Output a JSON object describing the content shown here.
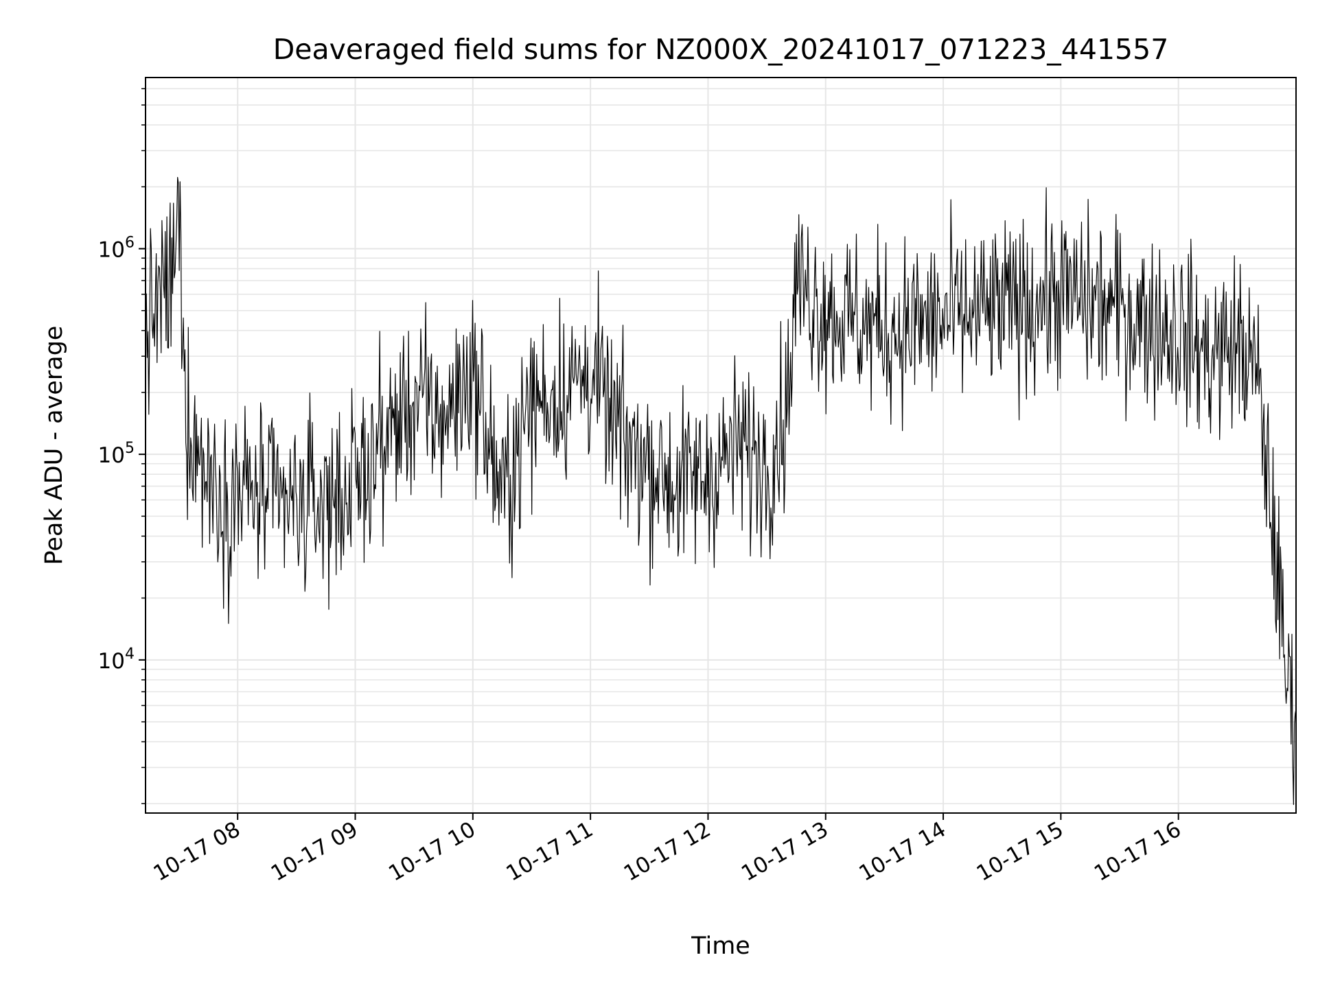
{
  "chart_data": {
    "type": "line",
    "title": "Deaveraged field sums for NZ000X_20241017_071223_441557",
    "xlabel": "Time",
    "ylabel": "Peak ADU - average",
    "yscale": "log",
    "ylim": [
      1800,
      6800000
    ],
    "xlim": [
      "2024-10-17 07:13",
      "2024-10-17 17:00"
    ],
    "grid": true,
    "line_color": "#000000",
    "grid_color": "#e6e6e6",
    "x_ticks": [
      {
        "label": "10-17 08",
        "time": "2024-10-17 08:00"
      },
      {
        "label": "10-17 09",
        "time": "2024-10-17 09:00"
      },
      {
        "label": "10-17 10",
        "time": "2024-10-17 10:00"
      },
      {
        "label": "10-17 11",
        "time": "2024-10-17 11:00"
      },
      {
        "label": "10-17 12",
        "time": "2024-10-17 12:00"
      },
      {
        "label": "10-17 13",
        "time": "2024-10-17 13:00"
      },
      {
        "label": "10-17 14",
        "time": "2024-10-17 14:00"
      },
      {
        "label": "10-17 15",
        "time": "2024-10-17 15:00"
      },
      {
        "label": "10-17 16",
        "time": "2024-10-17 16:00"
      }
    ],
    "y_ticks": [
      {
        "base": "10",
        "exp": "4",
        "value": 10000
      },
      {
        "base": "10",
        "exp": "5",
        "value": 100000
      },
      {
        "base": "10",
        "exp": "6",
        "value": 1000000
      }
    ],
    "series": [
      {
        "x": [
          "2024-10-17 07:13",
          "2024-10-17 07:20",
          "2024-10-17 07:27",
          "2024-10-17 07:30",
          "2024-10-17 07:33",
          "2024-10-17 07:35",
          "2024-10-17 07:40",
          "2024-10-17 07:45",
          "2024-10-17 07:50",
          "2024-10-17 07:55",
          "2024-10-17 08:00",
          "2024-10-17 08:15",
          "2024-10-17 08:30",
          "2024-10-17 08:45",
          "2024-10-17 09:00",
          "2024-10-17 09:15",
          "2024-10-17 09:30",
          "2024-10-17 09:45",
          "2024-10-17 10:00",
          "2024-10-17 10:15",
          "2024-10-17 10:30",
          "2024-10-17 10:45",
          "2024-10-17 11:00",
          "2024-10-17 11:15",
          "2024-10-17 11:30",
          "2024-10-17 11:45",
          "2024-10-17 12:00",
          "2024-10-17 12:15",
          "2024-10-17 12:30",
          "2024-10-17 12:40",
          "2024-10-17 12:45",
          "2024-10-17 13:00",
          "2024-10-17 13:30",
          "2024-10-17 14:00",
          "2024-10-17 14:30",
          "2024-10-17 15:00",
          "2024-10-17 15:30",
          "2024-10-17 16:00",
          "2024-10-17 16:15",
          "2024-10-17 16:30",
          "2024-10-17 16:40",
          "2024-10-17 16:45",
          "2024-10-17 16:50",
          "2024-10-17 16:55",
          "2024-10-17 17:00"
        ],
        "y": [
          400000,
          550000,
          700000,
          1500000,
          200000,
          150000,
          100000,
          80000,
          70000,
          60000,
          70000,
          60000,
          55000,
          60000,
          70000,
          120000,
          180000,
          150000,
          250000,
          60000,
          180000,
          200000,
          250000,
          120000,
          90000,
          70000,
          80000,
          110000,
          90000,
          160000,
          700000,
          500000,
          400000,
          450000,
          500000,
          600000,
          500000,
          400000,
          300000,
          350000,
          250000,
          90000,
          30000,
          8000,
          6000
        ]
      }
    ]
  }
}
